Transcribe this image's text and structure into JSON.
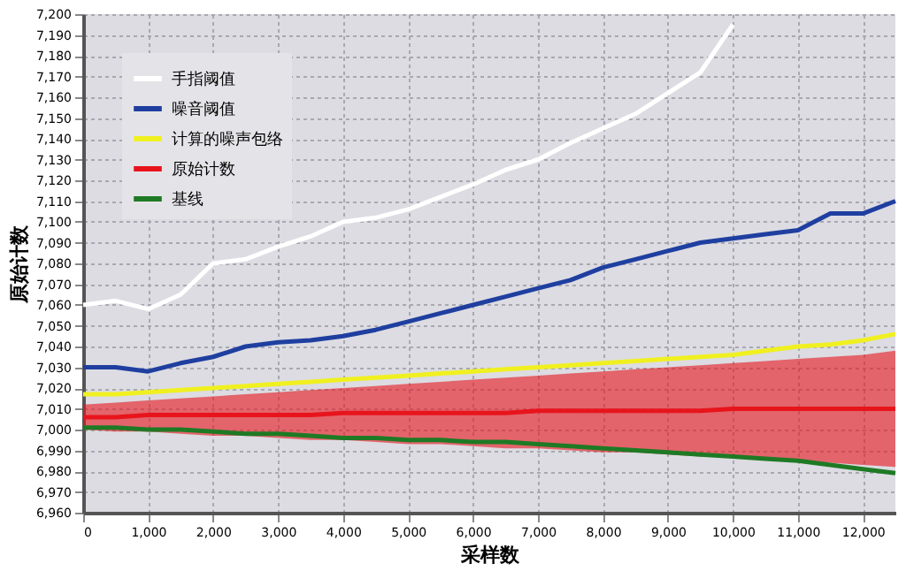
{
  "chart_data": {
    "type": "line",
    "xlabel": "采样数",
    "ylabel": "原始计数",
    "x": [
      0,
      500,
      1000,
      1500,
      2000,
      2500,
      3000,
      3500,
      4000,
      4500,
      5000,
      5500,
      6000,
      6500,
      7000,
      7500,
      8000,
      8500,
      9000,
      9500,
      10000,
      10500,
      11000,
      11500,
      12000,
      12500
    ],
    "series": [
      {
        "name": "手指阈值",
        "color": "#ffffff",
        "values": [
          7060,
          7062,
          7058,
          7065,
          7080,
          7082,
          7088,
          7093,
          7100,
          7102,
          7106,
          7112,
          7118,
          7125,
          7130,
          7138,
          7145,
          7152,
          7162,
          7172,
          7195,
          null,
          null,
          null,
          null,
          null
        ]
      },
      {
        "name": "噪音阈值",
        "color": "#1f3fa0",
        "values": [
          7030,
          7030,
          7028,
          7032,
          7035,
          7040,
          7042,
          7043,
          7045,
          7048,
          7052,
          7056,
          7060,
          7064,
          7068,
          7072,
          7078,
          7082,
          7086,
          7090,
          7092,
          7094,
          7096,
          7104,
          7104,
          7110
        ]
      },
      {
        "name": "计算的噪声包络",
        "color": "#f0f020",
        "values": [
          7017,
          7017,
          7018,
          7019,
          7020,
          7021,
          7022,
          7023,
          7024,
          7025,
          7026,
          7027,
          7028,
          7029,
          7030,
          7031,
          7032,
          7033,
          7034,
          7035,
          7036,
          7038,
          7040,
          7041,
          7043,
          7046
        ]
      },
      {
        "name": "原始计数",
        "color": "#e8141c",
        "values": [
          7006,
          7006,
          7007,
          7007,
          7007,
          7007,
          7007,
          7007,
          7008,
          7008,
          7008,
          7008,
          7008,
          7008,
          7009,
          7009,
          7009,
          7009,
          7009,
          7009,
          7010,
          7010,
          7010,
          7010,
          7010,
          7010
        ],
        "lower": [
          7000,
          6999,
          6999,
          6998,
          6997,
          6997,
          6996,
          6995,
          6995,
          6994,
          6993,
          6993,
          6992,
          6991,
          6991,
          6990,
          6989,
          6989,
          6988,
          6987,
          6987,
          6986,
          6985,
          6984,
          6983,
          6982
        ],
        "upper": [
          7012,
          7013,
          7014,
          7015,
          7016,
          7017,
          7018,
          7019,
          7020,
          7021,
          7022,
          7023,
          7024,
          7025,
          7026,
          7027,
          7028,
          7029,
          7030,
          7031,
          7032,
          7033,
          7034,
          7035,
          7036,
          7038
        ]
      },
      {
        "name": "基线",
        "color": "#1e7a24",
        "values": [
          7001,
          7001,
          7000,
          7000,
          6999,
          6998,
          6998,
          6997,
          6996,
          6996,
          6995,
          6995,
          6994,
          6994,
          6993,
          6992,
          6991,
          6990,
          6989,
          6988,
          6987,
          6986,
          6985,
          6983,
          6981,
          6979
        ]
      }
    ],
    "xlim": [
      0,
      12500
    ],
    "ylim": [
      6960,
      7200
    ],
    "xticks": [
      0,
      {
        "value": 1000,
        "label": "1,000"
      },
      {
        "value": 2000,
        "label": "2,000"
      },
      {
        "value": 3000,
        "label": "3,000"
      },
      {
        "value": 4000,
        "label": "4,000"
      },
      {
        "value": 5000,
        "label": "5,000"
      },
      {
        "value": 6000,
        "label": "6,000"
      },
      {
        "value": 7000,
        "label": "7,000"
      },
      {
        "value": 8000,
        "label": "8,000"
      },
      {
        "value": 9000,
        "label": "9,000"
      },
      {
        "value": 10000,
        "label": "10,000"
      },
      {
        "value": 11000,
        "label": "11,000"
      },
      {
        "value": 12000,
        "label": "12,000"
      }
    ],
    "yticks": [
      {
        "value": 6960,
        "label": "6,960"
      },
      {
        "value": 6970,
        "label": "6,970"
      },
      {
        "value": 6980,
        "label": "6,980"
      },
      {
        "value": 6990,
        "label": "6,990"
      },
      {
        "value": 7000,
        "label": "7,000"
      },
      {
        "value": 7010,
        "label": "7,010"
      },
      {
        "value": 7020,
        "label": "7,020"
      },
      {
        "value": 7030,
        "label": "7,030"
      },
      {
        "value": 7040,
        "label": "7,040"
      },
      {
        "value": 7050,
        "label": "7,050"
      },
      {
        "value": 7060,
        "label": "7,060"
      },
      {
        "value": 7070,
        "label": "7,070"
      },
      {
        "value": 7080,
        "label": "7,080"
      },
      {
        "value": 7090,
        "label": "7,090"
      },
      {
        "value": 7100,
        "label": "7,100"
      },
      {
        "value": 7110,
        "label": "7,110"
      },
      {
        "value": 7120,
        "label": "7,120"
      },
      {
        "value": 7130,
        "label": "7,130"
      },
      {
        "value": 7140,
        "label": "7,140"
      },
      {
        "value": 7150,
        "label": "7,150"
      },
      {
        "value": 7160,
        "label": "7,160"
      },
      {
        "value": 7170,
        "label": "7,170"
      },
      {
        "value": 7180,
        "label": "7,180"
      },
      {
        "value": 7190,
        "label": "7,190"
      },
      {
        "value": 7200,
        "label": "7,200"
      }
    ],
    "grid": true,
    "legend": "top left",
    "line_style": "solid",
    "marker": "none"
  }
}
